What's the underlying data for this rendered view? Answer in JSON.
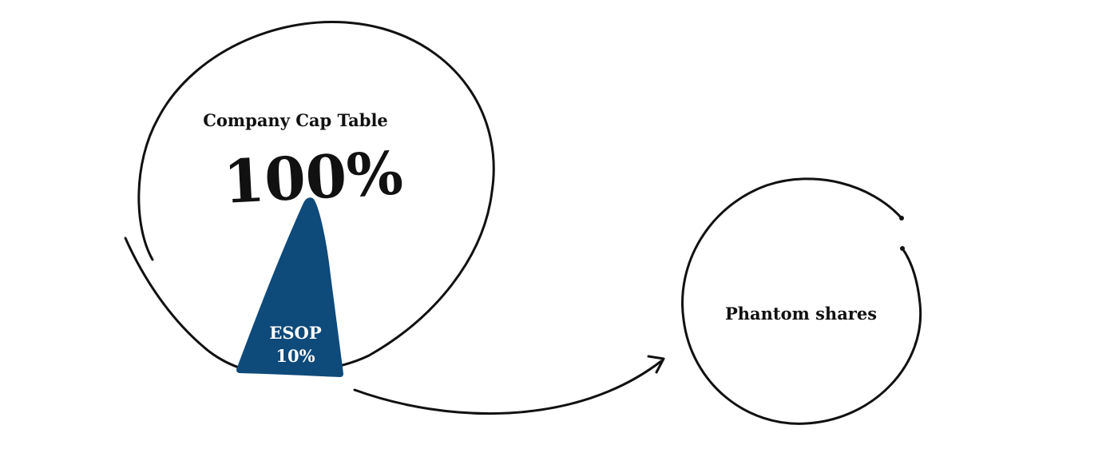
{
  "diagram": {
    "company": {
      "title": "Company Cap Table",
      "percent": "100%"
    },
    "esop": {
      "label": "ESOP",
      "percent": "10%",
      "color": "#0e4a7a"
    },
    "phantom": {
      "label": "Phantom shares"
    },
    "colors": {
      "stroke": "#111111",
      "background": "#ffffff",
      "esop_text": "#ffffff"
    }
  }
}
